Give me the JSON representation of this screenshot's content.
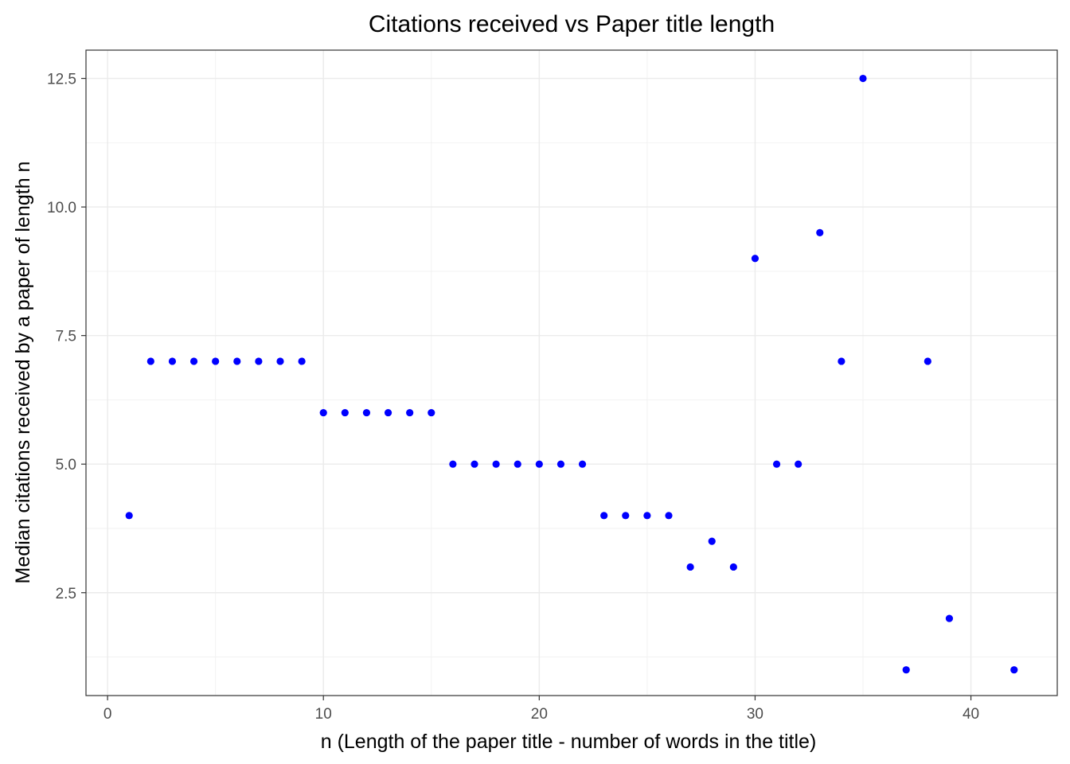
{
  "chart_data": {
    "type": "scatter",
    "title": "Citations received vs Paper title length",
    "xlabel": "n (Length of the paper title - number of words in the title)",
    "ylabel": "Median citations received by a paper of length n",
    "xlim": [
      -1,
      44
    ],
    "ylim": [
      0.5,
      13.05
    ],
    "x_ticks": [
      0,
      10,
      20,
      30,
      40
    ],
    "x_tick_labels": [
      "0",
      "10",
      "20",
      "30",
      "40"
    ],
    "y_ticks": [
      2.5,
      5.0,
      7.5,
      10.0,
      12.5
    ],
    "y_tick_labels": [
      "2.5",
      "5.0",
      "7.5",
      "10.0",
      "12.5"
    ],
    "grid": true,
    "point_color": "#0000ff",
    "points": [
      {
        "x": 1,
        "y": 4
      },
      {
        "x": 2,
        "y": 7
      },
      {
        "x": 3,
        "y": 7
      },
      {
        "x": 4,
        "y": 7
      },
      {
        "x": 5,
        "y": 7
      },
      {
        "x": 6,
        "y": 7
      },
      {
        "x": 7,
        "y": 7
      },
      {
        "x": 8,
        "y": 7
      },
      {
        "x": 9,
        "y": 7
      },
      {
        "x": 10,
        "y": 6
      },
      {
        "x": 11,
        "y": 6
      },
      {
        "x": 12,
        "y": 6
      },
      {
        "x": 13,
        "y": 6
      },
      {
        "x": 14,
        "y": 6
      },
      {
        "x": 15,
        "y": 6
      },
      {
        "x": 16,
        "y": 5
      },
      {
        "x": 17,
        "y": 5
      },
      {
        "x": 18,
        "y": 5
      },
      {
        "x": 19,
        "y": 5
      },
      {
        "x": 20,
        "y": 5
      },
      {
        "x": 21,
        "y": 5
      },
      {
        "x": 22,
        "y": 5
      },
      {
        "x": 23,
        "y": 4
      },
      {
        "x": 24,
        "y": 4
      },
      {
        "x": 25,
        "y": 4
      },
      {
        "x": 26,
        "y": 4
      },
      {
        "x": 27,
        "y": 3
      },
      {
        "x": 28,
        "y": 3.5
      },
      {
        "x": 29,
        "y": 3
      },
      {
        "x": 30,
        "y": 9
      },
      {
        "x": 31,
        "y": 5
      },
      {
        "x": 32,
        "y": 5
      },
      {
        "x": 33,
        "y": 9.5
      },
      {
        "x": 34,
        "y": 7
      },
      {
        "x": 35,
        "y": 12.5
      },
      {
        "x": 37,
        "y": 1
      },
      {
        "x": 38,
        "y": 7
      },
      {
        "x": 39,
        "y": 2
      },
      {
        "x": 42,
        "y": 1
      }
    ]
  }
}
